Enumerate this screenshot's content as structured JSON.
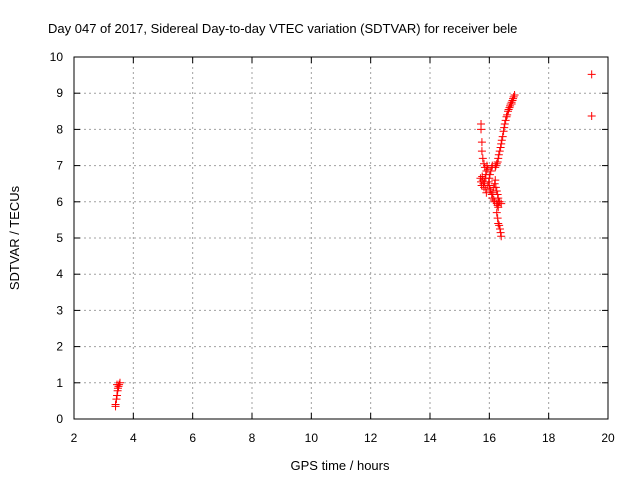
{
  "chart_data": {
    "type": "scatter",
    "title": "Day 047 of 2017, Sidereal Day-to-day VTEC variation (SDTVAR) for receiver bele",
    "xlabel": "GPS time / hours",
    "ylabel": "SDTVAR / TECUs",
    "xlim": [
      2,
      20
    ],
    "ylim": [
      0,
      10
    ],
    "xticks": [
      2,
      4,
      6,
      8,
      10,
      12,
      14,
      16,
      18,
      20
    ],
    "yticks": [
      0,
      1,
      2,
      3,
      4,
      5,
      6,
      7,
      8,
      9,
      10
    ],
    "grid": true,
    "marker": "+",
    "colors": {
      "points": "#ff0000",
      "axes": "#000000",
      "grid": "#a0a0a0",
      "background": "#ffffff"
    },
    "points": [
      [
        3.4,
        0.35
      ],
      [
        3.4,
        0.4
      ],
      [
        3.43,
        0.55
      ],
      [
        3.45,
        0.65
      ],
      [
        3.47,
        0.78
      ],
      [
        3.48,
        0.85
      ],
      [
        3.5,
        0.9
      ],
      [
        3.52,
        0.95
      ],
      [
        3.55,
        1.0
      ],
      [
        3.45,
        0.95
      ],
      [
        15.72,
        8.15
      ],
      [
        15.72,
        8.0
      ],
      [
        15.75,
        7.65
      ],
      [
        15.75,
        7.4
      ],
      [
        15.78,
        7.2
      ],
      [
        15.7,
        6.65
      ],
      [
        15.72,
        6.55
      ],
      [
        15.74,
        6.45
      ],
      [
        15.76,
        6.7
      ],
      [
        15.78,
        6.6
      ],
      [
        15.8,
        6.5
      ],
      [
        15.82,
        6.4
      ],
      [
        15.84,
        6.55
      ],
      [
        15.86,
        6.65
      ],
      [
        15.88,
        6.75
      ],
      [
        15.9,
        6.85
      ],
      [
        15.92,
        7.0
      ],
      [
        15.95,
        6.9
      ],
      [
        15.82,
        7.05
      ],
      [
        15.85,
        6.95
      ],
      [
        15.88,
        6.35
      ],
      [
        15.9,
        6.25
      ],
      [
        15.95,
        6.45
      ],
      [
        15.98,
        6.55
      ],
      [
        16.0,
        6.65
      ],
      [
        16.02,
        6.75
      ],
      [
        16.05,
        6.85
      ],
      [
        16.08,
        6.95
      ],
      [
        16.1,
        7.0
      ],
      [
        16.0,
        6.45
      ],
      [
        16.02,
        6.35
      ],
      [
        16.05,
        6.3
      ],
      [
        16.08,
        6.2
      ],
      [
        16.1,
        6.1
      ],
      [
        16.12,
        6.25
      ],
      [
        16.15,
        6.4
      ],
      [
        16.18,
        6.5
      ],
      [
        16.2,
        6.6
      ],
      [
        16.22,
        6.4
      ],
      [
        16.25,
        6.3
      ],
      [
        16.28,
        6.2
      ],
      [
        16.3,
        6.1
      ],
      [
        16.32,
        6.0
      ],
      [
        16.35,
        6.0
      ],
      [
        16.4,
        5.95
      ],
      [
        16.15,
        6.05
      ],
      [
        16.18,
        6.0
      ],
      [
        16.25,
        5.95
      ],
      [
        16.28,
        5.9
      ],
      [
        16.3,
        5.85
      ],
      [
        16.25,
        5.7
      ],
      [
        16.28,
        5.55
      ],
      [
        16.3,
        5.4
      ],
      [
        16.33,
        5.35
      ],
      [
        16.36,
        5.25
      ],
      [
        16.38,
        5.15
      ],
      [
        16.4,
        5.05
      ],
      [
        16.2,
        6.95
      ],
      [
        16.22,
        7.0
      ],
      [
        16.25,
        7.05
      ],
      [
        16.28,
        7.1
      ],
      [
        16.3,
        7.2
      ],
      [
        16.32,
        7.3
      ],
      [
        16.35,
        7.4
      ],
      [
        16.38,
        7.5
      ],
      [
        16.4,
        7.6
      ],
      [
        16.42,
        7.7
      ],
      [
        16.45,
        7.8
      ],
      [
        16.48,
        7.95
      ],
      [
        16.5,
        8.05
      ],
      [
        16.52,
        8.15
      ],
      [
        16.55,
        8.25
      ],
      [
        16.58,
        8.35
      ],
      [
        16.6,
        8.4
      ],
      [
        16.63,
        8.5
      ],
      [
        16.65,
        8.55
      ],
      [
        16.68,
        8.6
      ],
      [
        16.7,
        8.65
      ],
      [
        16.72,
        8.7
      ],
      [
        16.75,
        8.75
      ],
      [
        16.78,
        8.8
      ],
      [
        16.8,
        8.85
      ],
      [
        16.82,
        8.9
      ],
      [
        16.85,
        8.95
      ],
      [
        16.75,
        8.7
      ],
      [
        19.45,
        9.52
      ],
      [
        19.45,
        8.37
      ]
    ]
  }
}
